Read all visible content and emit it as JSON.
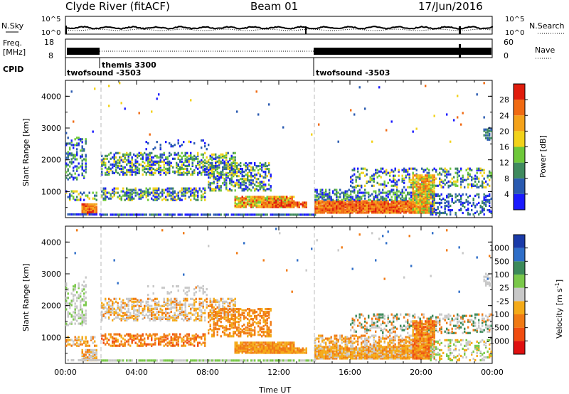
{
  "header": {
    "station": "Clyde River (fitACF)",
    "beam": "Beam 01",
    "date": "17/Jun/2016"
  },
  "top_panels": {
    "nsky": {
      "left_label": "N.Sky",
      "right_label": "N.Search",
      "left_ticks": [
        "10^5",
        "10^0"
      ],
      "right_ticks": [
        "10^5",
        "10^0"
      ]
    },
    "freq": {
      "left_label_1": "Freq.",
      "left_label_2": "[MHz]",
      "right_label": "Nave",
      "left_ticks": [
        "18",
        "8"
      ],
      "right_ticks": [
        "60",
        "0"
      ]
    },
    "cpid": {
      "label": "CPID",
      "segments": [
        {
          "name": "twofsound -3503",
          "start": "00:00",
          "end": "02:00"
        },
        {
          "name": "themis 3300",
          "start": "02:00",
          "end": "14:00"
        },
        {
          "name": "twofsound -3503",
          "start": "14:00",
          "end": "24:00"
        }
      ]
    }
  },
  "colors": {
    "power": [
      "#1a1aff",
      "#2a5ab0",
      "#3f8a5e",
      "#6ec83a",
      "#f2d21a",
      "#f4a21a",
      "#f06a12",
      "#e01c0c"
    ],
    "velocity": [
      "#1a3aa8",
      "#2f6ec8",
      "#3c8a5a",
      "#7ac84a",
      "#c8c8c8",
      "#f4aa18",
      "#f07a14",
      "#f04c10",
      "#e01010"
    ]
  },
  "chart_data": [
    {
      "type": "heatmap",
      "title": "",
      "xlabel": "Time UT",
      "ylabel": "Slant Range [km]",
      "x_ticks": [
        "00:00",
        "04:00",
        "08:00",
        "12:00",
        "16:00",
        "20:00",
        "00:00"
      ],
      "y_ticks": [
        "1000",
        "2000",
        "3000",
        "4000"
      ],
      "xlim_hours": [
        0,
        24
      ],
      "ylim_km": [
        180,
        4500
      ],
      "colorbar": {
        "label": "Power [dB]",
        "ticks": [
          "4",
          "8",
          "12",
          "16",
          "20",
          "24",
          "28"
        ],
        "range": [
          0,
          32
        ]
      }
    },
    {
      "type": "heatmap",
      "title": "",
      "xlabel": "Time UT",
      "ylabel": "Slant Range [km]",
      "x_ticks": [
        "00:00",
        "04:00",
        "08:00",
        "12:00",
        "16:00",
        "20:00",
        "00:00"
      ],
      "y_ticks": [
        "1000",
        "2000",
        "3000",
        "4000"
      ],
      "xlim_hours": [
        0,
        24
      ],
      "ylim_km": [
        180,
        4500
      ],
      "colorbar": {
        "label": "Velocity [m s^-1]",
        "ticks": [
          "1000",
          "500",
          "100",
          "25",
          "-25",
          "-100",
          "-500",
          "-1000"
        ]
      }
    }
  ]
}
